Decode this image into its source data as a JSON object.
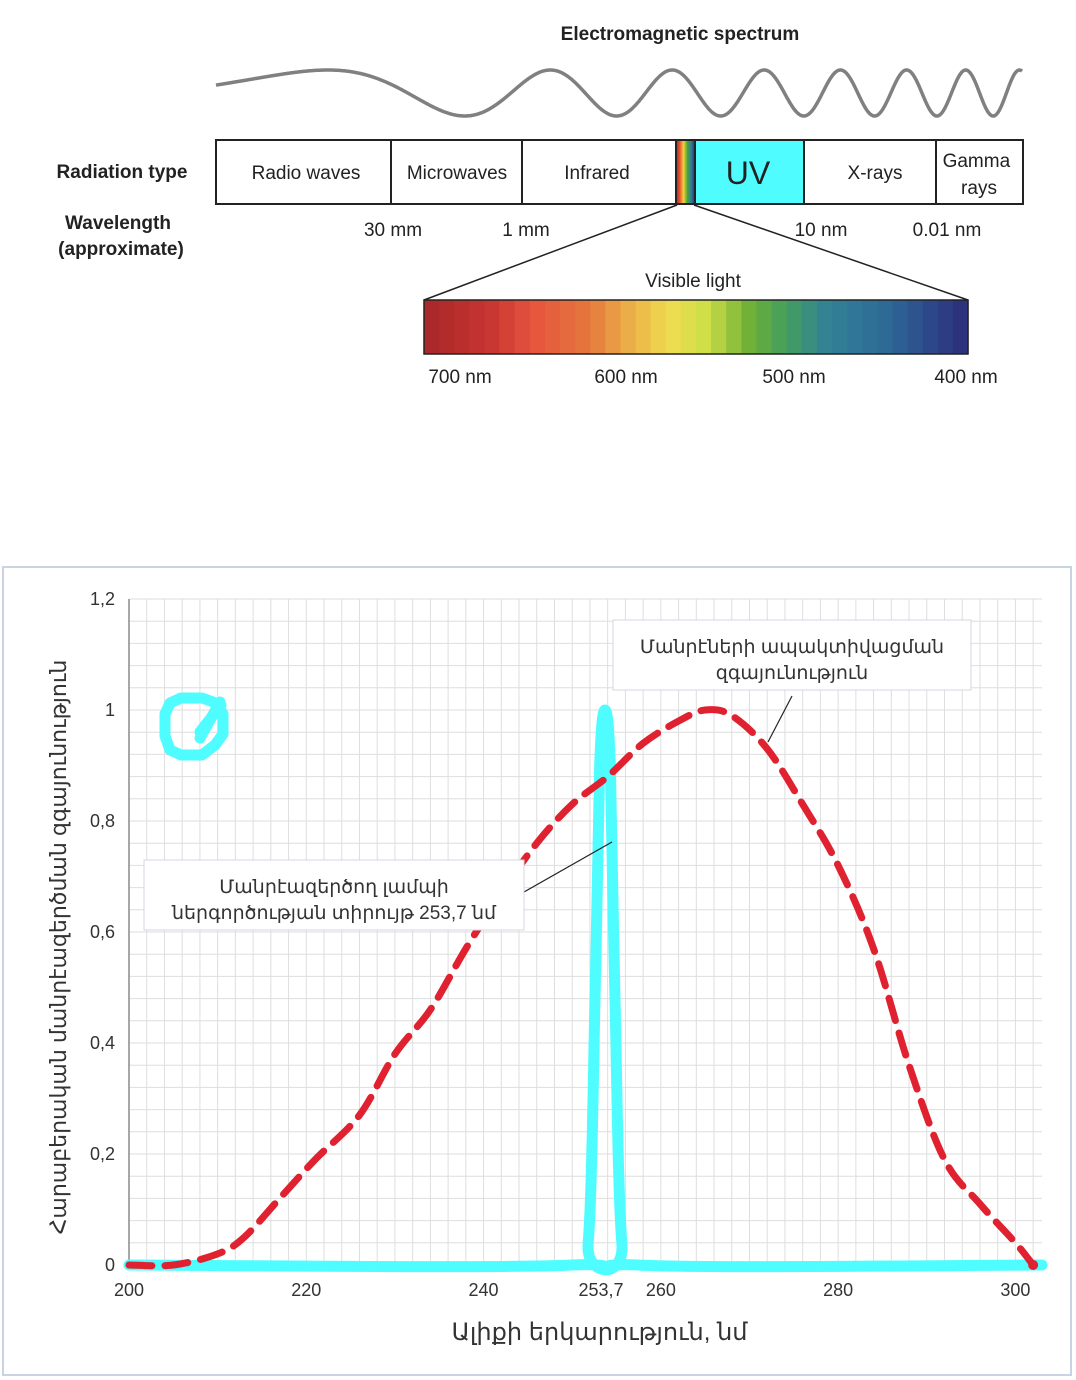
{
  "spectrum": {
    "title": "Electromagnetic spectrum",
    "row_label_radiation": "Radiation type",
    "row_label_wavelength_1": "Wavelength",
    "row_label_wavelength_2": "(approximate)",
    "bands": [
      {
        "label": "Radio waves"
      },
      {
        "label": "Microwaves"
      },
      {
        "label": "Infrared"
      },
      {
        "label": "UV",
        "color": "#4ffcff"
      },
      {
        "label": "X-rays"
      },
      {
        "label": "Gamma rays"
      }
    ],
    "wavelengths": [
      "30 mm",
      "1 mm",
      "10 nm",
      "0.01 nm"
    ],
    "visible_title": "Visible light",
    "visible_ticks": [
      "700 nm",
      "600 nm",
      "500 nm",
      "400 nm"
    ]
  },
  "chart_data": {
    "type": "line",
    "title": "",
    "xlabel": "Ալիքի երկարություն, նմ",
    "ylabel": "Հարաբերական մանրէազերծման զգայունություն",
    "xlim": [
      200,
      303
    ],
    "ylim": [
      0,
      1.2
    ],
    "x_ticks": [
      "200",
      "220",
      "240",
      "253,7",
      "260",
      "280",
      "300"
    ],
    "y_ticks": [
      "0",
      "0,2",
      "0,4",
      "0,6",
      "0,8",
      "1",
      "1,2"
    ],
    "grid": true,
    "series": [
      {
        "name": "Մանրէների ապակտիվացման զգայունություն",
        "color": "#e02130",
        "style": "dashed",
        "x": [
          200,
          205,
          210,
          213,
          217,
          221,
          226,
          230,
          234,
          238,
          242,
          246,
          250,
          254,
          258,
          262,
          265,
          268,
          272,
          276,
          280,
          284,
          288,
          292,
          296,
          300,
          302
        ],
        "y": [
          0,
          0,
          0.02,
          0.05,
          0.12,
          0.19,
          0.27,
          0.38,
          0.46,
          0.57,
          0.67,
          0.76,
          0.83,
          0.88,
          0.94,
          0.98,
          1.0,
          0.99,
          0.93,
          0.83,
          0.72,
          0.57,
          0.36,
          0.19,
          0.11,
          0.04,
          0.0
        ]
      },
      {
        "name": "Մանրէազերծող լամպի ներգործության տիրույթ 253,7 նմ",
        "color": "#4ffcff",
        "style": "solid",
        "x": [
          200,
          250,
          251.8,
          252.6,
          253.1,
          253.7,
          254.3,
          254.8,
          255.6,
          257.4,
          303
        ],
        "y": [
          0,
          0,
          0.04,
          0.5,
          0.9,
          1.0,
          0.9,
          0.5,
          0.04,
          0,
          0
        ]
      }
    ],
    "annotations": [
      {
        "text_1": "Մանրէների ապակտիվացման",
        "text_2": "զգայունություն"
      },
      {
        "text_1": "Մանրէազերծող լամպի",
        "text_2": "ներգործության տիրույթ 253,7 նմ"
      }
    ],
    "logo_color": "#4ffcff"
  }
}
